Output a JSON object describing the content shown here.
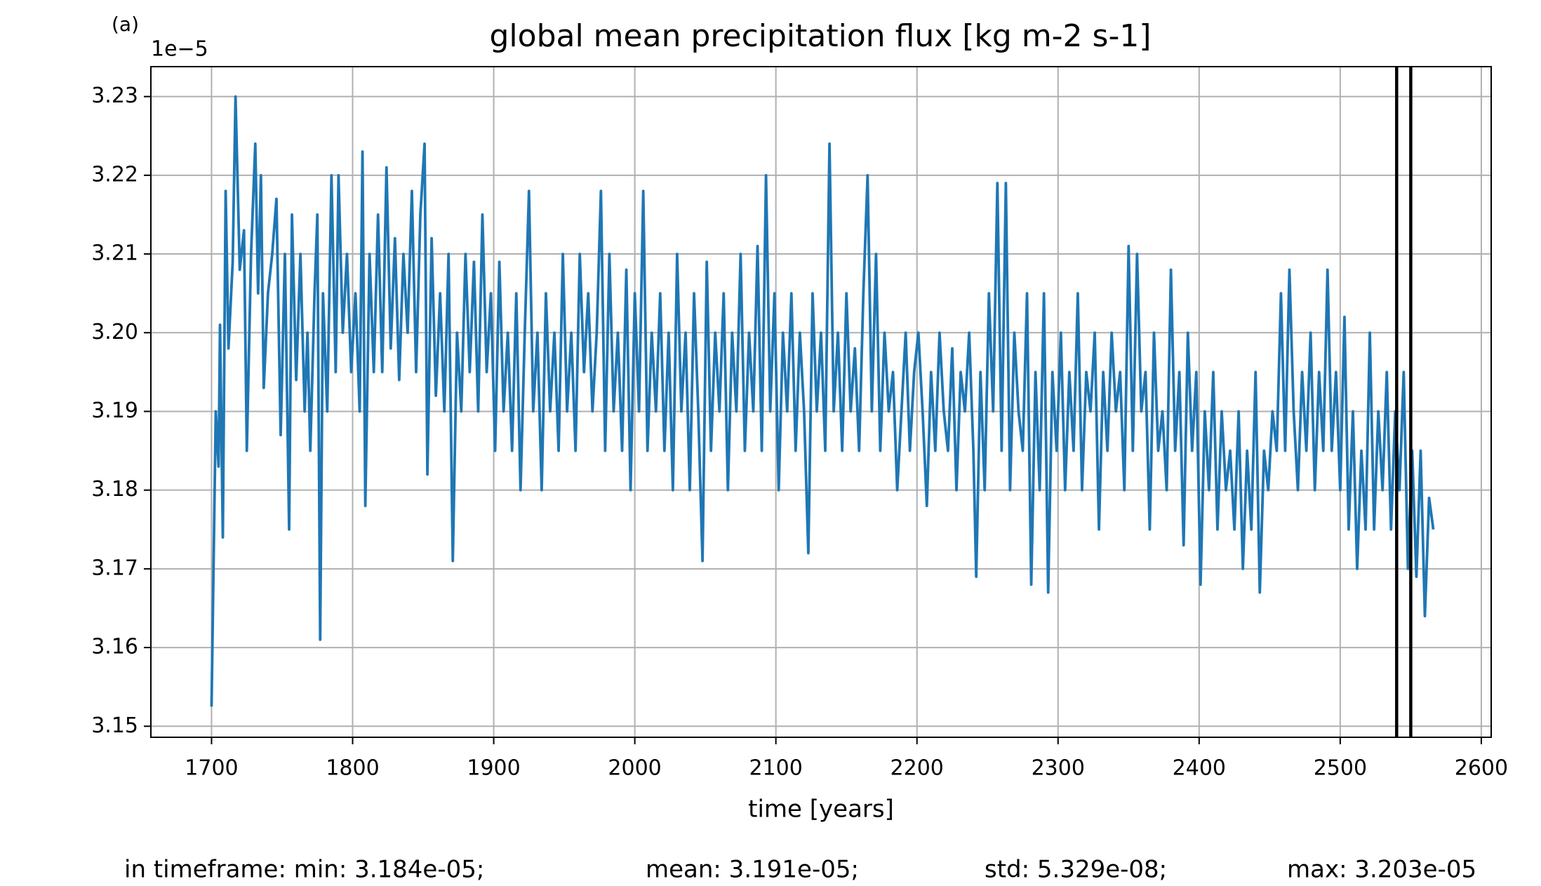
{
  "chart_data": {
    "type": "line",
    "panel_label": "(a)",
    "title": "global mean precipitation flux [kg m-2 s-1]",
    "x_label": "time [years]",
    "offset_label": "1e−5",
    "footer": [
      "in timeframe: min: 3.184e-05;",
      "mean: 3.191e-05;",
      "std: 5.329e-08;",
      "max: 3.203e-05"
    ],
    "xlim": [
      1657,
      2607
    ],
    "ylim": [
      3.1486,
      3.2338
    ],
    "xticks": [
      1700,
      1800,
      1900,
      2000,
      2100,
      2200,
      2300,
      2400,
      2500,
      2600
    ],
    "yticks": [
      3.15,
      3.16,
      3.17,
      3.18,
      3.19,
      {
        "value": 3.2,
        "label": "3.20"
      },
      3.21,
      3.22,
      3.23
    ],
    "grid": true,
    "vlines": [
      2540,
      2550
    ],
    "vline_color": "#000000",
    "series": [
      {
        "color": "#1f77b4",
        "x": [
          1700,
          1703,
          1705,
          1706,
          1708,
          1710,
          1712,
          1715,
          1717,
          1720,
          1723,
          1725,
          1728,
          1731,
          1733,
          1735,
          1737,
          1740,
          1743,
          1746,
          1749,
          1752,
          1755,
          1757,
          1760,
          1763,
          1766,
          1768,
          1770,
          1773,
          1775,
          1777,
          1779,
          1782,
          1785,
          1788,
          1790,
          1793,
          1796,
          1799,
          1802,
          1805,
          1807,
          1809,
          1812,
          1815,
          1818,
          1821,
          1824,
          1827,
          1830,
          1833,
          1836,
          1839,
          1842,
          1845,
          1848,
          1851,
          1853,
          1856,
          1859,
          1862,
          1865,
          1868,
          1871,
          1874,
          1877,
          1880,
          1883,
          1886,
          1889,
          1892,
          1895,
          1898,
          1901,
          1904,
          1907,
          1910,
          1913,
          1916,
          1919,
          1922,
          1925,
          1928,
          1931,
          1934,
          1937,
          1940,
          1943,
          1946,
          1949,
          1952,
          1955,
          1958,
          1961,
          1964,
          1967,
          1970,
          1973,
          1976,
          1979,
          1982,
          1985,
          1988,
          1991,
          1994,
          1997,
          2000,
          2003,
          2006,
          2009,
          2012,
          2015,
          2018,
          2021,
          2024,
          2027,
          2030,
          2033,
          2036,
          2039,
          2042,
          2045,
          2048,
          2051,
          2054,
          2057,
          2060,
          2063,
          2066,
          2069,
          2072,
          2075,
          2078,
          2081,
          2084,
          2087,
          2090,
          2093,
          2096,
          2099,
          2102,
          2105,
          2108,
          2111,
          2114,
          2117,
          2120,
          2123,
          2126,
          2129,
          2132,
          2135,
          2138,
          2141,
          2144,
          2147,
          2150,
          2153,
          2156,
          2159,
          2162,
          2165,
          2168,
          2171,
          2174,
          2177,
          2180,
          2183,
          2186,
          2189,
          2192,
          2195,
          2198,
          2201,
          2204,
          2207,
          2210,
          2213,
          2216,
          2219,
          2222,
          2225,
          2228,
          2231,
          2234,
          2237,
          2240,
          2242,
          2245,
          2248,
          2251,
          2254,
          2257,
          2260,
          2263,
          2266,
          2269,
          2272,
          2275,
          2278,
          2281,
          2284,
          2287,
          2290,
          2293,
          2296,
          2299,
          2302,
          2305,
          2308,
          2311,
          2314,
          2317,
          2320,
          2323,
          2326,
          2329,
          2332,
          2335,
          2338,
          2341,
          2344,
          2347,
          2350,
          2353,
          2356,
          2359,
          2362,
          2365,
          2368,
          2371,
          2374,
          2377,
          2380,
          2383,
          2386,
          2389,
          2392,
          2395,
          2398,
          2401,
          2404,
          2407,
          2410,
          2413,
          2416,
          2419,
          2422,
          2425,
          2428,
          2431,
          2434,
          2437,
          2440,
          2443,
          2446,
          2449,
          2452,
          2455,
          2458,
          2461,
          2464,
          2467,
          2470,
          2473,
          2476,
          2479,
          2482,
          2485,
          2488,
          2491,
          2494,
          2497,
          2500,
          2503,
          2506,
          2509,
          2512,
          2515,
          2518,
          2521,
          2524,
          2527,
          2530,
          2533,
          2536,
          2539,
          2542,
          2545,
          2548,
          2551,
          2554,
          2557,
          2560,
          2563,
          2566
        ],
        "values": [
          3.1525,
          3.19,
          3.183,
          3.201,
          3.174,
          3.218,
          3.198,
          3.209,
          3.23,
          3.208,
          3.213,
          3.185,
          3.21,
          3.224,
          3.205,
          3.22,
          3.193,
          3.205,
          3.21,
          3.217,
          3.187,
          3.21,
          3.175,
          3.215,
          3.194,
          3.21,
          3.19,
          3.2,
          3.185,
          3.205,
          3.215,
          3.161,
          3.205,
          3.19,
          3.22,
          3.195,
          3.22,
          3.2,
          3.21,
          3.195,
          3.205,
          3.19,
          3.223,
          3.178,
          3.21,
          3.195,
          3.215,
          3.195,
          3.221,
          3.198,
          3.212,
          3.194,
          3.21,
          3.2,
          3.218,
          3.195,
          3.215,
          3.224,
          3.182,
          3.212,
          3.192,
          3.205,
          3.19,
          3.21,
          3.171,
          3.2,
          3.19,
          3.21,
          3.195,
          3.209,
          3.19,
          3.215,
          3.195,
          3.205,
          3.185,
          3.209,
          3.19,
          3.2,
          3.185,
          3.205,
          3.18,
          3.2,
          3.218,
          3.19,
          3.2,
          3.18,
          3.205,
          3.19,
          3.2,
          3.185,
          3.21,
          3.19,
          3.2,
          3.185,
          3.21,
          3.195,
          3.205,
          3.19,
          3.2,
          3.218,
          3.185,
          3.21,
          3.19,
          3.2,
          3.185,
          3.208,
          3.18,
          3.205,
          3.19,
          3.218,
          3.185,
          3.2,
          3.19,
          3.205,
          3.185,
          3.2,
          3.18,
          3.21,
          3.19,
          3.2,
          3.18,
          3.205,
          3.19,
          3.171,
          3.209,
          3.185,
          3.2,
          3.19,
          3.205,
          3.18,
          3.2,
          3.19,
          3.21,
          3.185,
          3.2,
          3.19,
          3.211,
          3.185,
          3.22,
          3.19,
          3.205,
          3.18,
          3.2,
          3.19,
          3.205,
          3.185,
          3.2,
          3.19,
          3.172,
          3.205,
          3.19,
          3.2,
          3.185,
          3.224,
          3.19,
          3.2,
          3.185,
          3.205,
          3.19,
          3.198,
          3.185,
          3.205,
          3.22,
          3.19,
          3.21,
          3.185,
          3.2,
          3.19,
          3.195,
          3.18,
          3.19,
          3.2,
          3.185,
          3.195,
          3.2,
          3.19,
          3.178,
          3.195,
          3.185,
          3.2,
          3.19,
          3.185,
          3.198,
          3.18,
          3.195,
          3.19,
          3.2,
          3.185,
          3.169,
          3.195,
          3.18,
          3.205,
          3.19,
          3.219,
          3.185,
          3.219,
          3.18,
          3.2,
          3.19,
          3.185,
          3.205,
          3.168,
          3.195,
          3.18,
          3.205,
          3.167,
          3.195,
          3.185,
          3.2,
          3.18,
          3.195,
          3.185,
          3.205,
          3.18,
          3.195,
          3.19,
          3.2,
          3.175,
          3.195,
          3.185,
          3.2,
          3.19,
          3.195,
          3.18,
          3.211,
          3.185,
          3.21,
          3.19,
          3.195,
          3.175,
          3.2,
          3.185,
          3.19,
          3.18,
          3.208,
          3.185,
          3.195,
          3.173,
          3.2,
          3.185,
          3.195,
          3.168,
          3.19,
          3.18,
          3.195,
          3.175,
          3.19,
          3.18,
          3.185,
          3.175,
          3.19,
          3.17,
          3.185,
          3.175,
          3.195,
          3.167,
          3.185,
          3.18,
          3.19,
          3.185,
          3.205,
          3.185,
          3.208,
          3.19,
          3.18,
          3.195,
          3.185,
          3.2,
          3.18,
          3.195,
          3.185,
          3.208,
          3.185,
          3.195,
          3.18,
          3.202,
          3.175,
          3.19,
          3.17,
          3.185,
          3.175,
          3.2,
          3.175,
          3.19,
          3.18,
          3.195,
          3.175,
          3.19,
          3.18,
          3.195,
          3.17,
          3.185,
          3.169,
          3.185,
          3.164,
          3.179,
          3.175
        ]
      }
    ]
  }
}
